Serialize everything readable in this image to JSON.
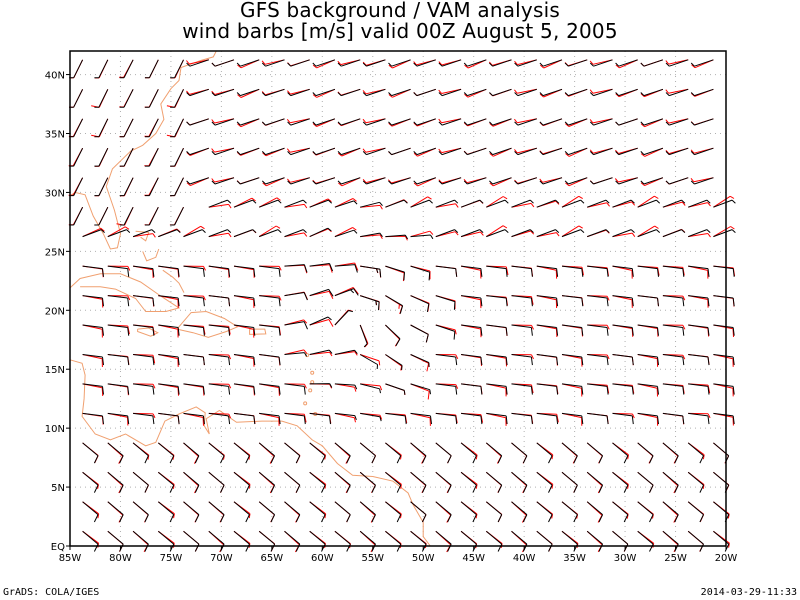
{
  "map": {
    "title_line1": "GFS background / VAM analysis",
    "title_line2": "wind barbs [m/s] valid 00Z August 5, 2005",
    "lon_ticks": [
      "85W",
      "80W",
      "75W",
      "70W",
      "65W",
      "60W",
      "55W",
      "50W",
      "45W",
      "40W",
      "35W",
      "30W",
      "25W",
      "20W"
    ],
    "lat_ticks": [
      "EQ",
      "5N",
      "10N",
      "15N",
      "20N",
      "25N",
      "30N",
      "35N",
      "40N"
    ],
    "lon_range": [
      -85,
      -20
    ],
    "lat_range": [
      0,
      42
    ],
    "projection": "lat-lon",
    "grid": "dotted",
    "coastline_color": "#f0a070",
    "barb_colors": {
      "background_gfs": "#ff0000",
      "vam_analysis": "#000000"
    },
    "barb_grid_spacing_deg": 2.5
  },
  "footer": {
    "left": "GrADS: COLA/IGES",
    "right": "2014-03-29-11:33"
  }
}
